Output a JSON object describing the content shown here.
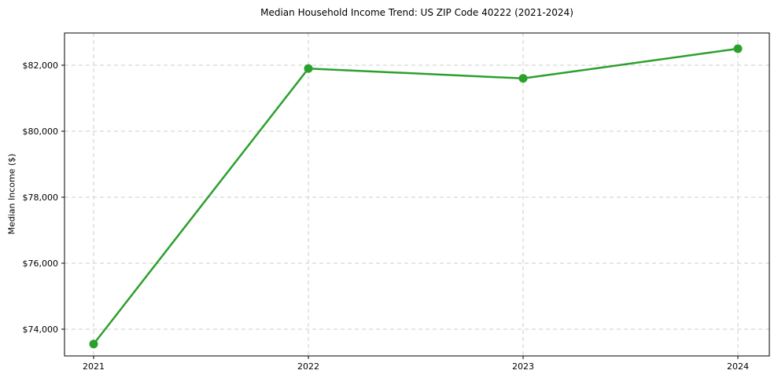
{
  "chart_data": {
    "type": "line",
    "title": "Median Household Income Trend: US ZIP Code 40222 (2021-2024)",
    "xlabel": "",
    "ylabel": "Median Income ($)",
    "categories": [
      "2021",
      "2022",
      "2023",
      "2024"
    ],
    "series": [
      {
        "values": [
          73550,
          81900,
          81600,
          82500
        ]
      }
    ],
    "ylim": [
      73190,
      82976
    ],
    "yticks": [
      74000,
      76000,
      78000,
      80000,
      82000
    ],
    "ytick_labels": [
      "$74,000",
      "$76,000",
      "$78,000",
      "$80,000",
      "$82,000"
    ],
    "grid": true,
    "grid_style": "dashed",
    "legend": false,
    "line_color": "#2ca02c",
    "grid_color": "#cccccc",
    "spine_color": "#000000",
    "text_color": "#000000"
  }
}
